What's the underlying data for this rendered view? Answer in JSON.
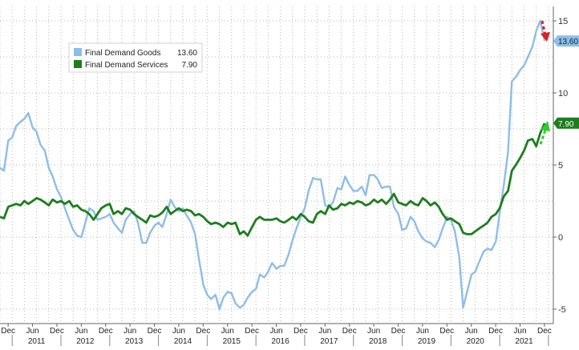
{
  "chart_data": {
    "type": "line",
    "title": "",
    "xlabel": "",
    "ylabel": "",
    "ylim": [
      -6,
      16
    ],
    "yticks": [
      -5,
      0,
      5,
      10,
      15
    ],
    "grid": true,
    "legend_position": "top-left",
    "x_tick_labels": [
      {
        "t": 2010.917,
        "label": "Dec"
      },
      {
        "t": 2011.417,
        "label": "Jun"
      },
      {
        "t": 2011.917,
        "label": "Dec"
      },
      {
        "t": 2012.417,
        "label": "Jun"
      },
      {
        "t": 2012.917,
        "label": "Dec"
      },
      {
        "t": 2013.417,
        "label": "Jun"
      },
      {
        "t": 2013.917,
        "label": "Dec"
      },
      {
        "t": 2014.417,
        "label": "Jun"
      },
      {
        "t": 2014.917,
        "label": "Dec"
      },
      {
        "t": 2015.417,
        "label": "Jun"
      },
      {
        "t": 2015.917,
        "label": "Dec"
      },
      {
        "t": 2016.417,
        "label": "Jun"
      },
      {
        "t": 2016.917,
        "label": "Dec"
      },
      {
        "t": 2017.417,
        "label": "Jun"
      },
      {
        "t": 2017.917,
        "label": "Dec"
      },
      {
        "t": 2018.417,
        "label": "Jun"
      },
      {
        "t": 2018.917,
        "label": "Dec"
      },
      {
        "t": 2019.417,
        "label": "Jun"
      },
      {
        "t": 2019.917,
        "label": "Dec"
      },
      {
        "t": 2020.417,
        "label": "Jun"
      },
      {
        "t": 2020.917,
        "label": "Dec"
      },
      {
        "t": 2021.417,
        "label": "Jun"
      },
      {
        "t": 2021.917,
        "label": "Dec"
      }
    ],
    "year_labels": [
      {
        "t": 2011.5,
        "label": "2011"
      },
      {
        "t": 2012.5,
        "label": "2012"
      },
      {
        "t": 2013.5,
        "label": "2013"
      },
      {
        "t": 2014.5,
        "label": "2014"
      },
      {
        "t": 2015.5,
        "label": "2015"
      },
      {
        "t": 2016.5,
        "label": "2016"
      },
      {
        "t": 2017.5,
        "label": "2017"
      },
      {
        "t": 2018.5,
        "label": "2018"
      },
      {
        "t": 2019.5,
        "label": "2019"
      },
      {
        "t": 2020.5,
        "label": "2020"
      },
      {
        "t": 2021.5,
        "label": "2021"
      }
    ],
    "series": [
      {
        "name": "Final Demand Goods",
        "last_value": "13.60",
        "color": "#8fbde6",
        "points": [
          [
            2010.75,
            4.8
          ],
          [
            2010.83,
            4.6
          ],
          [
            2010.92,
            6.7
          ],
          [
            2011.0,
            6.9
          ],
          [
            2011.08,
            7.7
          ],
          [
            2011.17,
            8.0
          ],
          [
            2011.25,
            8.2
          ],
          [
            2011.33,
            8.6
          ],
          [
            2011.42,
            7.6
          ],
          [
            2011.5,
            7.3
          ],
          [
            2011.58,
            6.4
          ],
          [
            2011.67,
            6.0
          ],
          [
            2011.75,
            4.8
          ],
          [
            2011.83,
            4.2
          ],
          [
            2011.92,
            3.3
          ],
          [
            2012.0,
            2.8
          ],
          [
            2012.08,
            2.0
          ],
          [
            2012.17,
            1.2
          ],
          [
            2012.25,
            0.5
          ],
          [
            2012.33,
            0.1
          ],
          [
            2012.42,
            0.0
          ],
          [
            2012.5,
            1.0
          ],
          [
            2012.58,
            2.0
          ],
          [
            2012.67,
            1.8
          ],
          [
            2012.75,
            1.2
          ],
          [
            2012.83,
            1.3
          ],
          [
            2012.92,
            1.4
          ],
          [
            2013.0,
            1.6
          ],
          [
            2013.08,
            1.0
          ],
          [
            2013.17,
            0.6
          ],
          [
            2013.25,
            0.3
          ],
          [
            2013.33,
            1.2
          ],
          [
            2013.42,
            1.6
          ],
          [
            2013.5,
            1.8
          ],
          [
            2013.58,
            1.0
          ],
          [
            2013.67,
            -0.4
          ],
          [
            2013.75,
            -0.4
          ],
          [
            2013.83,
            0.3
          ],
          [
            2013.92,
            0.8
          ],
          [
            2014.0,
            1.0
          ],
          [
            2014.08,
            0.7
          ],
          [
            2014.17,
            1.6
          ],
          [
            2014.25,
            2.6
          ],
          [
            2014.33,
            2.1
          ],
          [
            2014.42,
            1.8
          ],
          [
            2014.5,
            2.0
          ],
          [
            2014.58,
            1.5
          ],
          [
            2014.67,
            1.0
          ],
          [
            2014.75,
            0.2
          ],
          [
            2014.83,
            -1.5
          ],
          [
            2014.92,
            -3.3
          ],
          [
            2015.0,
            -4.0
          ],
          [
            2015.08,
            -4.3
          ],
          [
            2015.17,
            -4.0
          ],
          [
            2015.25,
            -5.0
          ],
          [
            2015.33,
            -4.2
          ],
          [
            2015.42,
            -3.8
          ],
          [
            2015.5,
            -3.9
          ],
          [
            2015.58,
            -4.6
          ],
          [
            2015.67,
            -4.9
          ],
          [
            2015.75,
            -4.7
          ],
          [
            2015.83,
            -4.2
          ],
          [
            2015.92,
            -3.8
          ],
          [
            2016.0,
            -3.6
          ],
          [
            2016.08,
            -2.6
          ],
          [
            2016.17,
            -2.8
          ],
          [
            2016.25,
            -2.4
          ],
          [
            2016.33,
            -1.8
          ],
          [
            2016.42,
            -2.2
          ],
          [
            2016.5,
            -2.0
          ],
          [
            2016.58,
            -2.0
          ],
          [
            2016.67,
            -1.2
          ],
          [
            2016.75,
            -0.2
          ],
          [
            2016.83,
            0.6
          ],
          [
            2016.92,
            1.4
          ],
          [
            2017.0,
            2.0
          ],
          [
            2017.08,
            3.2
          ],
          [
            2017.17,
            4.1
          ],
          [
            2017.25,
            4.0
          ],
          [
            2017.33,
            4.0
          ],
          [
            2017.42,
            2.2
          ],
          [
            2017.5,
            2.1
          ],
          [
            2017.58,
            2.4
          ],
          [
            2017.67,
            3.4
          ],
          [
            2017.75,
            3.3
          ],
          [
            2017.83,
            4.2
          ],
          [
            2017.92,
            3.6
          ],
          [
            2018.0,
            3.2
          ],
          [
            2018.08,
            3.2
          ],
          [
            2018.17,
            3.5
          ],
          [
            2018.25,
            2.9
          ],
          [
            2018.33,
            4.3
          ],
          [
            2018.42,
            4.3
          ],
          [
            2018.5,
            4.0
          ],
          [
            2018.58,
            3.4
          ],
          [
            2018.67,
            3.5
          ],
          [
            2018.75,
            3.5
          ],
          [
            2018.83,
            2.1
          ],
          [
            2018.92,
            1.6
          ],
          [
            2019.0,
            0.5
          ],
          [
            2019.08,
            0.6
          ],
          [
            2019.17,
            1.4
          ],
          [
            2019.25,
            1.1
          ],
          [
            2019.33,
            0.4
          ],
          [
            2019.42,
            -0.1
          ],
          [
            2019.5,
            -0.3
          ],
          [
            2019.58,
            -0.4
          ],
          [
            2019.67,
            -0.7
          ],
          [
            2019.75,
            -0.2
          ],
          [
            2019.83,
            0.6
          ],
          [
            2019.92,
            1.4
          ],
          [
            2020.0,
            1.2
          ],
          [
            2020.08,
            0.4
          ],
          [
            2020.17,
            -1.4
          ],
          [
            2020.25,
            -4.9
          ],
          [
            2020.33,
            -3.8
          ],
          [
            2020.42,
            -2.6
          ],
          [
            2020.5,
            -2.4
          ],
          [
            2020.58,
            -1.7
          ],
          [
            2020.67,
            -1.0
          ],
          [
            2020.75,
            -0.8
          ],
          [
            2020.83,
            -0.9
          ],
          [
            2020.92,
            -0.3
          ],
          [
            2021.0,
            1.7
          ],
          [
            2021.08,
            3.5
          ],
          [
            2021.17,
            5.9
          ],
          [
            2021.25,
            10.8
          ],
          [
            2021.33,
            11.1
          ],
          [
            2021.42,
            11.6
          ],
          [
            2021.5,
            11.9
          ],
          [
            2021.58,
            12.5
          ],
          [
            2021.67,
            13.2
          ],
          [
            2021.75,
            14.3
          ],
          [
            2021.83,
            15.0
          ],
          [
            2021.92,
            13.6
          ]
        ]
      },
      {
        "name": "Final Demand Services",
        "last_value": "7.90",
        "color": "#1e7d1e",
        "points": [
          [
            2010.75,
            1.4
          ],
          [
            2010.83,
            1.3
          ],
          [
            2010.92,
            2.1
          ],
          [
            2011.0,
            2.2
          ],
          [
            2011.08,
            2.3
          ],
          [
            2011.17,
            2.2
          ],
          [
            2011.25,
            2.5
          ],
          [
            2011.33,
            2.3
          ],
          [
            2011.42,
            2.5
          ],
          [
            2011.5,
            2.7
          ],
          [
            2011.58,
            2.6
          ],
          [
            2011.67,
            2.4
          ],
          [
            2011.75,
            2.2
          ],
          [
            2011.83,
            2.6
          ],
          [
            2011.92,
            2.4
          ],
          [
            2012.0,
            2.5
          ],
          [
            2012.08,
            2.3
          ],
          [
            2012.17,
            2.5
          ],
          [
            2012.25,
            2.1
          ],
          [
            2012.33,
            2.2
          ],
          [
            2012.42,
            1.9
          ],
          [
            2012.5,
            1.8
          ],
          [
            2012.58,
            1.6
          ],
          [
            2012.67,
            1.2
          ],
          [
            2012.75,
            1.6
          ],
          [
            2012.83,
            2.0
          ],
          [
            2012.92,
            2.2
          ],
          [
            2013.0,
            2.3
          ],
          [
            2013.08,
            1.6
          ],
          [
            2013.17,
            1.8
          ],
          [
            2013.25,
            1.6
          ],
          [
            2013.33,
            2.0
          ],
          [
            2013.42,
            1.9
          ],
          [
            2013.5,
            1.6
          ],
          [
            2013.58,
            1.4
          ],
          [
            2013.67,
            1.2
          ],
          [
            2013.75,
            1.0
          ],
          [
            2013.83,
            1.5
          ],
          [
            2013.92,
            1.4
          ],
          [
            2014.0,
            1.5
          ],
          [
            2014.08,
            1.7
          ],
          [
            2014.17,
            2.1
          ],
          [
            2014.25,
            1.6
          ],
          [
            2014.33,
            1.8
          ],
          [
            2014.42,
            2.0
          ],
          [
            2014.5,
            1.8
          ],
          [
            2014.58,
            1.9
          ],
          [
            2014.67,
            1.8
          ],
          [
            2014.75,
            1.5
          ],
          [
            2014.83,
            1.6
          ],
          [
            2014.92,
            1.4
          ],
          [
            2015.0,
            1.1
          ],
          [
            2015.08,
            0.9
          ],
          [
            2015.17,
            1.0
          ],
          [
            2015.25,
            0.9
          ],
          [
            2015.33,
            0.7
          ],
          [
            2015.42,
            1.0
          ],
          [
            2015.5,
            0.9
          ],
          [
            2015.58,
            1.0
          ],
          [
            2015.67,
            0.2
          ],
          [
            2015.75,
            0.4
          ],
          [
            2015.83,
            0.1
          ],
          [
            2015.92,
            0.7
          ],
          [
            2016.0,
            1.2
          ],
          [
            2016.08,
            1.4
          ],
          [
            2016.17,
            1.2
          ],
          [
            2016.25,
            1.2
          ],
          [
            2016.33,
            1.2
          ],
          [
            2016.42,
            1.3
          ],
          [
            2016.5,
            1.1
          ],
          [
            2016.58,
            1.0
          ],
          [
            2016.67,
            1.2
          ],
          [
            2016.75,
            1.4
          ],
          [
            2016.83,
            1.2
          ],
          [
            2016.92,
            1.6
          ],
          [
            2017.0,
            1.4
          ],
          [
            2017.08,
            1.1
          ],
          [
            2017.17,
            1.0
          ],
          [
            2017.25,
            1.6
          ],
          [
            2017.33,
            1.8
          ],
          [
            2017.42,
            1.6
          ],
          [
            2017.5,
            2.2
          ],
          [
            2017.58,
            1.9
          ],
          [
            2017.67,
            2.0
          ],
          [
            2017.75,
            2.3
          ],
          [
            2017.83,
            2.2
          ],
          [
            2017.92,
            2.4
          ],
          [
            2018.0,
            2.3
          ],
          [
            2018.08,
            2.5
          ],
          [
            2018.17,
            2.4
          ],
          [
            2018.25,
            2.2
          ],
          [
            2018.33,
            2.3
          ],
          [
            2018.42,
            2.6
          ],
          [
            2018.5,
            2.4
          ],
          [
            2018.58,
            2.6
          ],
          [
            2018.67,
            2.3
          ],
          [
            2018.75,
            2.6
          ],
          [
            2018.83,
            3.0
          ],
          [
            2018.92,
            2.4
          ],
          [
            2019.0,
            2.3
          ],
          [
            2019.08,
            2.2
          ],
          [
            2019.17,
            2.5
          ],
          [
            2019.25,
            2.3
          ],
          [
            2019.33,
            2.2
          ],
          [
            2019.42,
            2.7
          ],
          [
            2019.5,
            2.5
          ],
          [
            2019.58,
            2.2
          ],
          [
            2019.67,
            2.4
          ],
          [
            2019.75,
            2.1
          ],
          [
            2019.83,
            1.6
          ],
          [
            2019.92,
            1.2
          ],
          [
            2020.0,
            1.3
          ],
          [
            2020.08,
            1.1
          ],
          [
            2020.17,
            0.9
          ],
          [
            2020.25,
            0.3
          ],
          [
            2020.33,
            0.2
          ],
          [
            2020.42,
            0.2
          ],
          [
            2020.5,
            0.4
          ],
          [
            2020.58,
            0.6
          ],
          [
            2020.67,
            0.8
          ],
          [
            2020.75,
            1.0
          ],
          [
            2020.83,
            1.4
          ],
          [
            2020.92,
            1.6
          ],
          [
            2021.0,
            2.0
          ],
          [
            2021.08,
            2.8
          ],
          [
            2021.17,
            3.2
          ],
          [
            2021.25,
            4.6
          ],
          [
            2021.33,
            5.0
          ],
          [
            2021.42,
            5.5
          ],
          [
            2021.5,
            6.0
          ],
          [
            2021.58,
            6.7
          ],
          [
            2021.67,
            6.8
          ],
          [
            2021.75,
            6.3
          ],
          [
            2021.83,
            7.2
          ],
          [
            2021.92,
            7.9
          ]
        ]
      }
    ]
  }
}
